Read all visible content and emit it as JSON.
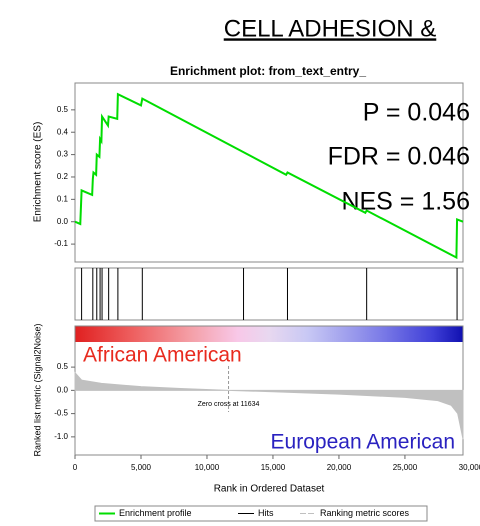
{
  "title": "CELL ADHESION &",
  "chart_data": [
    {
      "type": "line",
      "title": "Enrichment plot: from_text_entry_",
      "y_label": "Enrichment score (ES)",
      "annotations": [
        "P = 0.046",
        "FDR = 0.046",
        "NES = 1.56"
      ],
      "series": [
        {
          "name": "Enrichment profile",
          "color": "#00dd00",
          "x": [
            0,
            400,
            500,
            1300,
            1350,
            1400,
            1600,
            1650,
            1850,
            1900,
            2000,
            2050,
            2500,
            2550,
            3200,
            3250,
            5000,
            5100,
            16000,
            16100,
            22000,
            22100,
            28900,
            28950,
            29400
          ],
          "values": [
            0,
            -0.01,
            0.14,
            0.12,
            0.19,
            0.22,
            0.21,
            0.3,
            0.29,
            0.37,
            0.36,
            0.47,
            0.43,
            0.47,
            0.46,
            0.57,
            0.52,
            0.55,
            0.21,
            0.22,
            0.04,
            0.05,
            -0.16,
            0.01,
            0
          ]
        }
      ],
      "xlim": [
        0,
        29400
      ],
      "ylim": [
        -0.18,
        0.62
      ],
      "yticks": [
        0.5,
        0.4,
        0.3,
        0.2,
        0.1,
        {
          "value": 0,
          "label": "0.0"
        },
        -0.1
      ]
    },
    {
      "type": "rug",
      "series": [
        {
          "name": "Hits",
          "color": "#000000",
          "x": [
            500,
            1350,
            1650,
            1900,
            2050,
            2550,
            3250,
            5100,
            12770,
            16100,
            22100,
            28950
          ]
        }
      ],
      "xlim": [
        0,
        29400
      ]
    },
    {
      "type": "area",
      "y_label": "Ranked list metric (Signal2Noise)",
      "x_label": "Rank in Ordered Dataset",
      "zero_cross_label": "Zero cross at 11634",
      "zero_cross": 11634,
      "group_labels": [
        {
          "text": "African American",
          "color": "#e82a1e"
        },
        {
          "text": "European American",
          "color": "#2a22c0"
        }
      ],
      "series": [
        {
          "name": "Ranking metric scores",
          "color": "#c0c0c0",
          "x": [
            0,
            500,
            2000,
            5000,
            8000,
            11634,
            15000,
            20000,
            25000,
            27500,
            28500,
            29000,
            29400
          ],
          "values": [
            0.38,
            0.22,
            0.15,
            0.08,
            0.04,
            0,
            -0.03,
            -0.08,
            -0.15,
            -0.22,
            -0.32,
            -0.5,
            -1.05
          ]
        }
      ],
      "xlim": [
        0,
        29400
      ],
      "ylim": [
        -1.39,
        1.04
      ],
      "xticks": [
        0,
        {
          "value": 5000,
          "label": "5,000"
        },
        {
          "value": 10000,
          "label": "10,000"
        },
        {
          "value": 15000,
          "label": "15,000"
        },
        {
          "value": 20000,
          "label": "20,000"
        },
        {
          "value": 25000,
          "label": "25,000"
        },
        {
          "value": 30000,
          "label": "30,000"
        }
      ],
      "yticks": [
        0.5,
        {
          "value": 0,
          "label": "0.0"
        },
        -0.5,
        {
          "value": -1,
          "label": "-1.0"
        }
      ]
    }
  ]
}
